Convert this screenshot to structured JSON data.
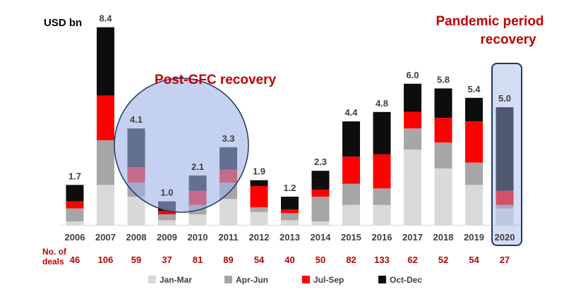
{
  "chart_data": {
    "type": "bar",
    "stacked": true,
    "ylabel": "USD bn",
    "categories": [
      "2006",
      "2007",
      "2008",
      "2009",
      "2010",
      "2011",
      "2012",
      "2013",
      "2014",
      "2015",
      "2016",
      "2017",
      "2018",
      "2019",
      "2020"
    ],
    "totals": [
      "1.7",
      "8.4",
      "4.1",
      "1.0",
      "2.1",
      "3.3",
      "1.9",
      "1.2",
      "2.3",
      "4.4",
      "4.8",
      "6.0",
      "5.8",
      "5.4",
      "5.0"
    ],
    "series": [
      {
        "name": "Jan-Mar",
        "color": "#d9d9d9",
        "values": [
          0.15,
          1.7,
          1.2,
          0.2,
          0.45,
          1.1,
          0.55,
          0.2,
          0.15,
          0.85,
          0.85,
          3.2,
          2.4,
          1.7,
          0.7
        ]
      },
      {
        "name": "Apr-Jun",
        "color": "#a6a6a6",
        "values": [
          0.55,
          1.9,
          0.6,
          0.25,
          0.4,
          0.7,
          0.2,
          0.3,
          1.05,
          0.9,
          0.7,
          0.9,
          1.1,
          0.95,
          0.15
        ]
      },
      {
        "name": "Jul-Sep",
        "color": "#ff0000",
        "values": [
          0.3,
          1.9,
          0.65,
          0.15,
          0.6,
          0.55,
          0.9,
          0.15,
          0.3,
          1.15,
          1.45,
          0.7,
          1.05,
          1.75,
          0.6
        ]
      },
      {
        "name": "Oct-Dec",
        "color": "#0d0d0d",
        "values": [
          0.7,
          2.9,
          1.65,
          0.4,
          0.65,
          0.95,
          0.25,
          0.55,
          0.8,
          1.5,
          1.8,
          1.2,
          1.25,
          1.0,
          3.55
        ]
      }
    ],
    "ylim": [
      0,
      8.6
    ],
    "deals_label": [
      "No. of",
      "deals"
    ],
    "deals": [
      46,
      106,
      59,
      37,
      81,
      89,
      54,
      40,
      50,
      82,
      133,
      62,
      52,
      54,
      27
    ],
    "annotations": [
      {
        "text": "Post-GFC recovery",
        "target": "2008-2011",
        "shape": "circle"
      },
      {
        "text": [
          "Pandemic period",
          "recovery"
        ],
        "target": "2020",
        "shape": "rounded-rectangle"
      }
    ],
    "legend": {
      "position": "bottom",
      "entries": [
        "Jan-Mar",
        "Apr-Jun",
        "Jul-Sep",
        "Oct-Dec"
      ]
    }
  },
  "colors": {
    "overlay_fill": "#9db3e6",
    "overlay_stroke": "#1f3864",
    "highlight_text": "#c00000"
  }
}
